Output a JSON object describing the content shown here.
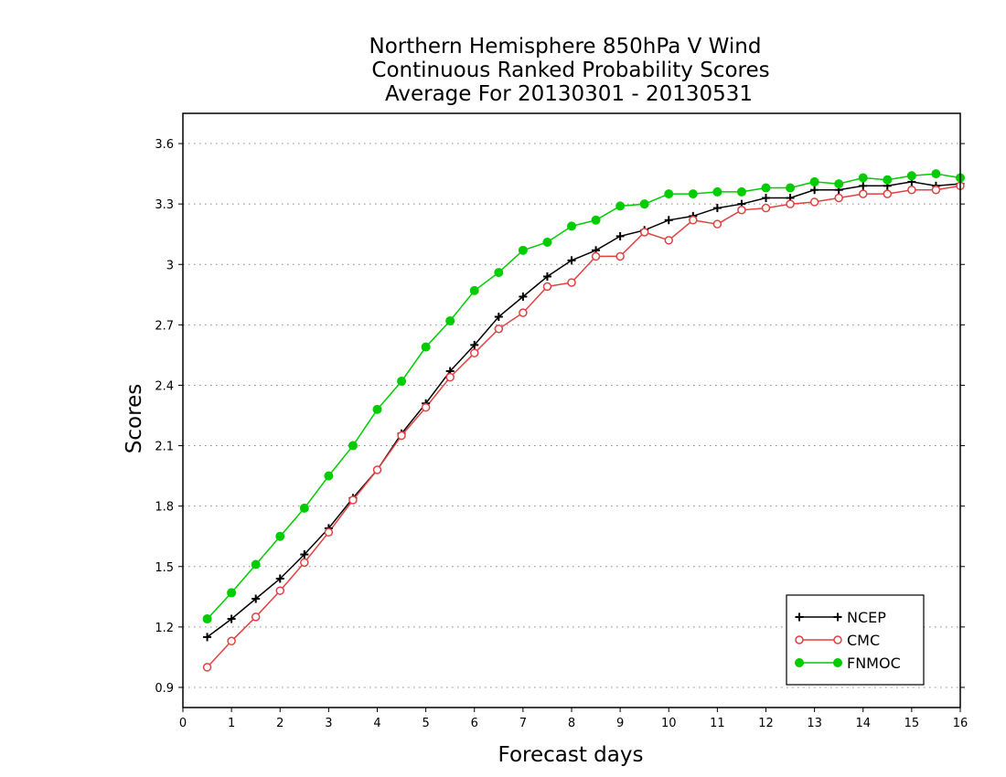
{
  "chart_data": {
    "type": "line",
    "title": [
      "Northern Hemisphere 850hPa V Wind",
      "Continuous Ranked Probability Scores",
      "Average For 20130301 - 20130531"
    ],
    "xlabel": "Forecast days",
    "ylabel": "Scores",
    "xlim": [
      0,
      16
    ],
    "ylim": [
      0.8,
      3.75
    ],
    "xticks": [
      0,
      1,
      2,
      3,
      4,
      5,
      6,
      7,
      8,
      9,
      10,
      11,
      12,
      13,
      14,
      15,
      16
    ],
    "xtick_labels": [
      "0",
      "1",
      "2",
      "3",
      "4",
      "5",
      "6",
      "7",
      "8",
      "9",
      "10",
      "11",
      "12",
      "13",
      "14",
      "15",
      "16"
    ],
    "yticks": [
      0.9,
      1.2,
      1.5,
      1.8,
      2.1,
      2.4,
      2.7,
      3.0,
      3.3,
      3.6
    ],
    "ytick_labels": [
      "0.9",
      "1.2",
      "1.5",
      "1.8",
      "2.1",
      "2.4",
      "2.7",
      "3",
      "3.3",
      "3.6"
    ],
    "grid": "horizontal dotted",
    "legend_position": "bottom-right",
    "x": [
      0.5,
      1,
      1.5,
      2,
      2.5,
      3,
      3.5,
      4,
      4.5,
      5,
      5.5,
      6,
      6.5,
      7,
      7.5,
      8,
      8.5,
      9,
      9.5,
      10,
      10.5,
      11,
      11.5,
      12,
      12.5,
      13,
      13.5,
      14,
      14.5,
      15,
      15.5,
      16
    ],
    "series": [
      {
        "name": "NCEP",
        "color": "#000000",
        "marker": "plus",
        "values": [
          1.15,
          1.24,
          1.34,
          1.44,
          1.56,
          1.69,
          1.84,
          1.98,
          2.16,
          2.31,
          2.47,
          2.6,
          2.74,
          2.84,
          2.94,
          3.02,
          3.07,
          3.14,
          3.17,
          3.22,
          3.24,
          3.28,
          3.3,
          3.33,
          3.33,
          3.37,
          3.37,
          3.39,
          3.39,
          3.41,
          3.39,
          3.4
        ]
      },
      {
        "name": "CMC",
        "color": "#e34040",
        "marker": "open-circle",
        "values": [
          1.0,
          1.13,
          1.25,
          1.38,
          1.52,
          1.67,
          1.83,
          1.98,
          2.15,
          2.29,
          2.44,
          2.56,
          2.68,
          2.76,
          2.89,
          2.91,
          3.04,
          3.04,
          3.16,
          3.12,
          3.22,
          3.2,
          3.27,
          3.28,
          3.3,
          3.31,
          3.33,
          3.35,
          3.35,
          3.37,
          3.37,
          3.39
        ]
      },
      {
        "name": "FNMOC",
        "color": "#00cc00",
        "marker": "filled-circle",
        "values": [
          1.24,
          1.37,
          1.51,
          1.65,
          1.79,
          1.95,
          2.1,
          2.28,
          2.42,
          2.59,
          2.72,
          2.87,
          2.96,
          3.07,
          3.11,
          3.19,
          3.22,
          3.29,
          3.3,
          3.35,
          3.35,
          3.36,
          3.36,
          3.38,
          3.38,
          3.41,
          3.4,
          3.43,
          3.42,
          3.44,
          3.45,
          3.43
        ]
      }
    ]
  }
}
